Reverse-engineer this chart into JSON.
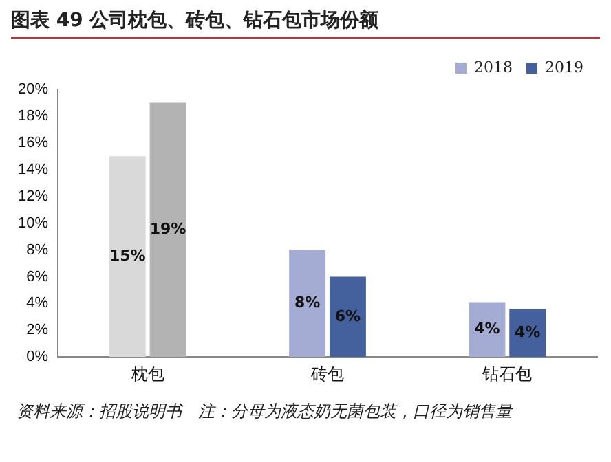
{
  "chart_data": {
    "type": "bar",
    "title": "图表 49 公司枕包、砖包、钻石包市场份额",
    "categories": [
      "枕包",
      "砖包",
      "钻石包"
    ],
    "series": [
      {
        "name": "2018",
        "color": "#a5acd3",
        "colors": [
          "#d9d9d9",
          "#a5acd3",
          "#a5acd3"
        ],
        "values": [
          15,
          8,
          4.1
        ],
        "value_labels": [
          "15%",
          "8%",
          "4%"
        ]
      },
      {
        "name": "2019",
        "color": "#44619d",
        "colors": [
          "#b3b3b3",
          "#44619d",
          "#44619d"
        ],
        "values": [
          19,
          6,
          3.6
        ],
        "value_labels": [
          "19%",
          "6%",
          "4%"
        ]
      }
    ],
    "ylim": [
      0,
      20
    ],
    "yticks": [
      {
        "value": 0,
        "label": "0%"
      },
      {
        "value": 2,
        "label": "2%"
      },
      {
        "value": 4,
        "label": "4%"
      },
      {
        "value": 6,
        "label": "6%"
      },
      {
        "value": 8,
        "label": "8%"
      },
      {
        "value": 10,
        "label": "10%"
      },
      {
        "value": 12,
        "label": "12%"
      },
      {
        "value": 14,
        "label": "14%"
      },
      {
        "value": 16,
        "label": "16%"
      },
      {
        "value": 18,
        "label": "18%"
      },
      {
        "value": 20,
        "label": "20%"
      }
    ],
    "grid": false,
    "legend": "top right",
    "annotations": [
      "资料来源：招股说明书　注：分母为液态奶无菌包装，口径为销售量"
    ]
  }
}
